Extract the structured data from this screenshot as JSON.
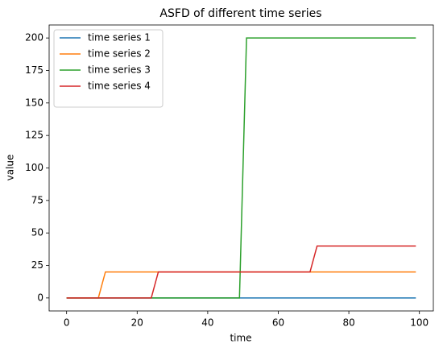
{
  "chart_data": {
    "type": "line",
    "title": "ASFD of different time series",
    "xlabel": "time",
    "ylabel": "value",
    "x": [
      0,
      9,
      10,
      11,
      24,
      25,
      26,
      49,
      50,
      51,
      69,
      70,
      71,
      99
    ],
    "series": [
      {
        "name": "time series 1",
        "color": "#1f77b4",
        "values": [
          0,
          0,
          0,
          0,
          0,
          0,
          0,
          0,
          0,
          0,
          0,
          0,
          0,
          0
        ]
      },
      {
        "name": "time series 2",
        "color": "#ff7f0e",
        "values": [
          0,
          0,
          10,
          20,
          20,
          20,
          20,
          20,
          20,
          20,
          20,
          20,
          20,
          20
        ]
      },
      {
        "name": "time series 3",
        "color": "#2ca02c",
        "values": [
          0,
          0,
          0,
          0,
          0,
          0,
          0,
          0,
          100,
          200,
          200,
          200,
          200,
          200
        ]
      },
      {
        "name": "time series 4",
        "color": "#d62728",
        "values": [
          0,
          0,
          0,
          0,
          0,
          10,
          20,
          20,
          20,
          20,
          20,
          30,
          40,
          40
        ]
      }
    ],
    "xlim": [
      -4.95,
      103.95
    ],
    "xticks": [
      0,
      20,
      40,
      60,
      80,
      100
    ],
    "ylim": [
      -10,
      210
    ],
    "yticks": [
      0,
      25,
      50,
      75,
      100,
      125,
      150,
      175,
      200
    ],
    "legend": "upper left"
  }
}
